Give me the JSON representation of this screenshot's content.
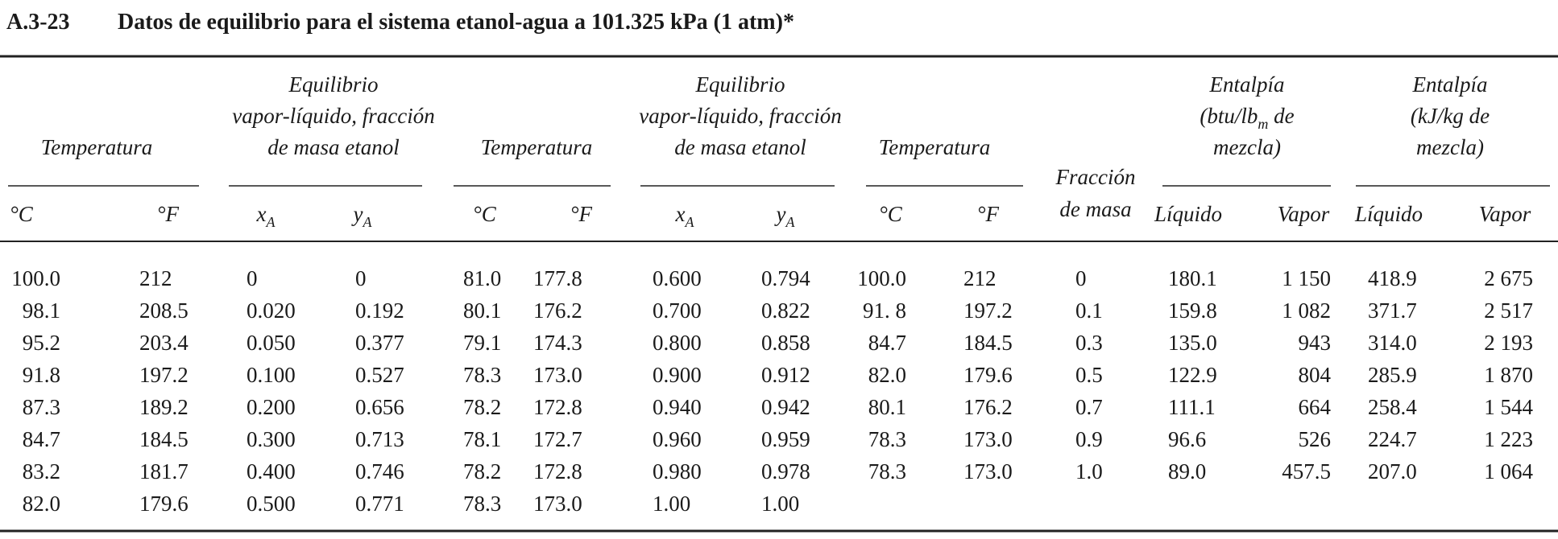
{
  "header": {
    "code": "A.3-23",
    "title": "Datos de equilibrio para el sistema etanol-agua a 101.325 kPa (1 atm)*"
  },
  "table": {
    "groups": [
      {
        "lines": [
          "Temperatura"
        ]
      },
      {
        "lines": [
          "Equilibrio",
          "vapor-líquido, fracción",
          "de masa etanol"
        ]
      },
      {
        "lines": [
          "Temperatura"
        ]
      },
      {
        "lines": [
          "Equilibrio",
          "vapor-líquido, fracción",
          "de masa etanol"
        ]
      },
      {
        "lines": [
          "Temperatura"
        ]
      },
      {
        "lines": [
          "Entalpía",
          {
            "text": "(btu/lb",
            "sub": "m",
            "after": " de"
          },
          "mezcla)"
        ]
      },
      {
        "lines": [
          "Entalpía",
          "(kJ/kg de",
          "mezcla)"
        ]
      }
    ],
    "fraction_header": [
      "Fracción",
      "de masa"
    ],
    "subheaders": [
      "°C",
      "°F",
      {
        "text": "x",
        "sub": "A"
      },
      {
        "text": "y",
        "sub": "A"
      },
      "°C",
      "°F",
      {
        "text": "x",
        "sub": "A"
      },
      {
        "text": "y",
        "sub": "A"
      },
      "°C",
      "°F",
      "Líquido",
      "Vapor",
      "Líquido",
      "Vapor"
    ],
    "rows": [
      [
        "100.0",
        "212",
        "0",
        "0",
        "81.0",
        "177.8",
        "0.600",
        "0.794",
        "100.0",
        "212",
        "0",
        "180.1",
        "1 150",
        "418.9",
        "2 675"
      ],
      [
        "98.1",
        "208.5",
        "0.020",
        "0.192",
        "80.1",
        "176.2",
        "0.700",
        "0.822",
        "91. 8",
        "197.2",
        "0.1",
        "159.8",
        "1 082",
        "371.7",
        "2 517"
      ],
      [
        "95.2",
        "203.4",
        "0.050",
        "0.377",
        "79.1",
        "174.3",
        "0.800",
        "0.858",
        "84.7",
        "184.5",
        "0.3",
        "135.0",
        "943",
        "314.0",
        "2 193"
      ],
      [
        "91.8",
        "197.2",
        "0.100",
        "0.527",
        "78.3",
        "173.0",
        "0.900",
        "0.912",
        "82.0",
        "179.6",
        "0.5",
        "122.9",
        "804",
        "285.9",
        "1 870"
      ],
      [
        "87.3",
        "189.2",
        "0.200",
        "0.656",
        "78.2",
        "172.8",
        "0.940",
        "0.942",
        "80.1",
        "176.2",
        "0.7",
        "111.1",
        "664",
        "258.4",
        "1 544"
      ],
      [
        "84.7",
        "184.5",
        "0.300",
        "0.713",
        "78.1",
        "172.7",
        "0.960",
        "0.959",
        "78.3",
        "173.0",
        "0.9",
        "96.6",
        "526",
        "224.7",
        "1 223"
      ],
      [
        "83.2",
        "181.7",
        "0.400",
        "0.746",
        "78.2",
        "172.8",
        "0.980",
        "0.978",
        "78.3",
        "173.0",
        "1.0",
        "89.0",
        "457.5",
        "207.0",
        "1 064"
      ],
      [
        "82.0",
        "179.6",
        "0.500",
        "0.771",
        "78.3",
        "173.0",
        "1.00",
        "1.00"
      ]
    ]
  }
}
